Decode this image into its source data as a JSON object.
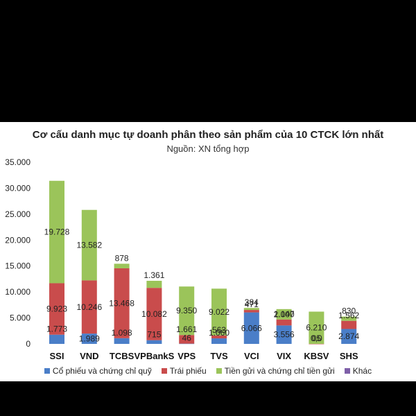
{
  "chart_data": {
    "type": "bar",
    "stacked": true,
    "title": "Cơ cấu danh mục tự doanh phân theo sản phẩm của 10 CTCK lớn nhất",
    "subtitle": "Nguồn: XN tổng hợp",
    "categories": [
      "SSI",
      "VND",
      "TCBS",
      "VPBankS",
      "VPS",
      "TVS",
      "VCI",
      "VIX",
      "KBSV",
      "SHS"
    ],
    "ylim": [
      0,
      35000
    ],
    "yticks": [
      0,
      5000,
      10000,
      15000,
      20000,
      25000,
      30000,
      35000
    ],
    "ytick_labels": [
      "0",
      "5.000",
      "10.000",
      "15.000",
      "20.000",
      "25.000",
      "30.000",
      "35.000"
    ],
    "grid": false,
    "legend": "bottom",
    "series": [
      {
        "name": "Cổ phiếu và chứng chỉ quỹ",
        "color": "#4a7ec8",
        "values": [
          1773,
          1989,
          1098,
          715,
          46,
          1060,
          6066,
          3556,
          0,
          2874
        ],
        "labels": [
          "1.773",
          "1.989",
          "1.098",
          "715",
          "46",
          "1.060",
          "6.066",
          "3.556",
          "0,0",
          "2.874"
        ]
      },
      {
        "name": "Trái phiếu",
        "color": "#c94c4c",
        "values": [
          9923,
          10246,
          13468,
          10082,
          1661,
          563,
          471,
          1147,
          5,
          1562
        ],
        "labels": [
          "9.923",
          "10.246",
          "13.468",
          "10.082",
          "1.661",
          "563",
          "471",
          "1.147",
          "05",
          "1.562"
        ]
      },
      {
        "name": "Tiền gửi và chứng chỉ tiền gửi",
        "color": "#9bc45a",
        "values": [
          19728,
          13582,
          878,
          1361,
          9350,
          9022,
          384,
          2000,
          6210,
          830
        ],
        "labels": [
          "19.728",
          "13.582",
          "878",
          "1.361",
          "9.350",
          "9.022",
          "384",
          "2.000",
          "6.210",
          "830"
        ]
      },
      {
        "name": "Khác",
        "color": "#7e5fa8",
        "values": [
          0,
          0,
          0,
          0,
          0,
          0,
          0,
          0,
          0,
          0
        ]
      }
    ]
  }
}
